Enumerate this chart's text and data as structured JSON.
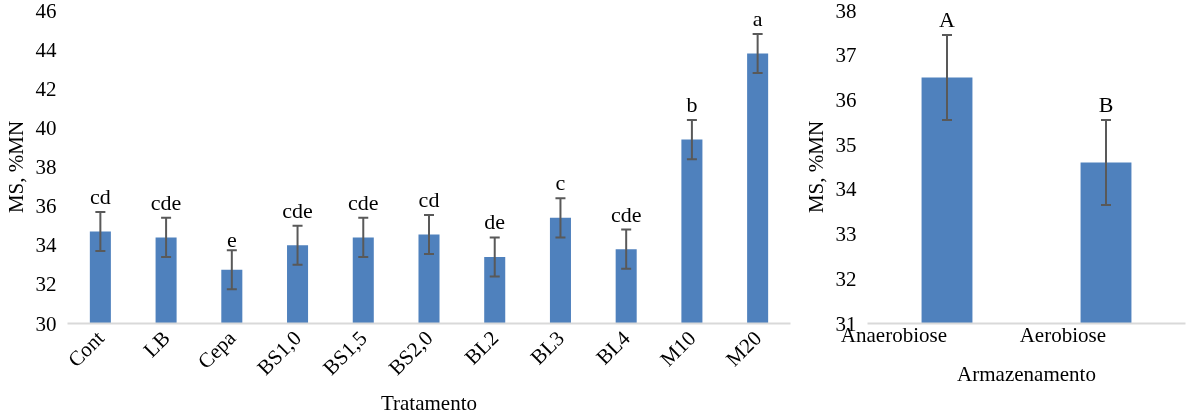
{
  "chart_data": [
    {
      "type": "bar",
      "xlabel": "Tratamento",
      "ylabel": "MS, %MN",
      "categories": [
        "Cont",
        "LB",
        "Cepa",
        "BS1,0",
        "BS1,5",
        "BS2,0",
        "BL2",
        "BL3",
        "BL4",
        "M10",
        "M20"
      ],
      "values": [
        34.7,
        34.4,
        32.75,
        34.0,
        34.4,
        34.55,
        33.4,
        35.4,
        33.8,
        39.4,
        43.8
      ],
      "errors": [
        1.0,
        1.0,
        1.0,
        1.0,
        1.0,
        1.0,
        1.0,
        1.0,
        1.0,
        1.0,
        1.0
      ],
      "color": "#4f81bd",
      "ylim": [
        30,
        46
      ],
      "yticks": [
        30,
        32,
        34,
        36,
        38,
        40,
        42,
        44,
        46
      ],
      "grid": false,
      "annotations": [
        {
          "text": "cd",
          "x": "Cont",
          "y": 34.7
        },
        {
          "text": "cde",
          "x": "LB",
          "y": 34.4
        },
        {
          "text": "e",
          "x": "Cepa",
          "y": 32.75
        },
        {
          "text": "cde",
          "x": "BS1,0",
          "y": 34.0
        },
        {
          "text": "cde",
          "x": "BS1,5",
          "y": 34.4
        },
        {
          "text": "cd",
          "x": "BS2,0",
          "y": 34.55
        },
        {
          "text": "de",
          "x": "BL2",
          "y": 33.4
        },
        {
          "text": "c",
          "x": "BL3",
          "y": 35.4
        },
        {
          "text": "cde",
          "x": "BL4",
          "y": 33.8
        },
        {
          "text": "b",
          "x": "M10",
          "y": 39.4
        },
        {
          "text": "a",
          "x": "M20",
          "y": 43.8
        }
      ]
    },
    {
      "type": "bar",
      "xlabel": "Armazenamento",
      "ylabel": "MS, %MN",
      "categories": [
        "Anaerobiose",
        "Aerobiose"
      ],
      "values": [
        36.5,
        34.6
      ],
      "errors": [
        0.95,
        0.95
      ],
      "color": "#4f81bd",
      "ylim": [
        31,
        38
      ],
      "yticks": [
        31,
        32,
        33,
        34,
        35,
        36,
        37,
        38
      ],
      "grid": false,
      "annotations": [
        "A",
        "B"
      ]
    }
  ]
}
